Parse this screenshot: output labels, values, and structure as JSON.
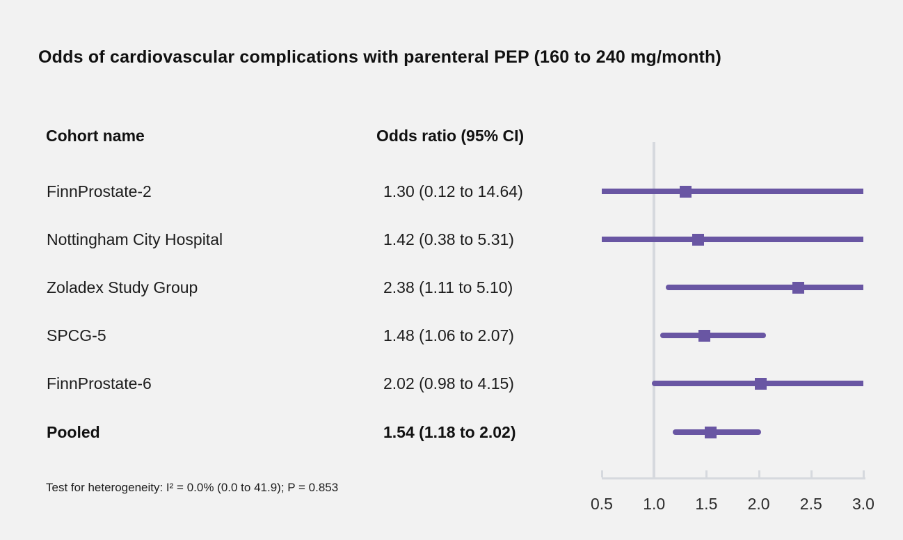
{
  "title": "Odds of cardiovascular complications with parenteral PEP (160 to 240 mg/month)",
  "columns": {
    "cohort": "Cohort name",
    "odds": "Odds ratio (95% CI)"
  },
  "footnote": "Test for heterogeneity: I² = 0.0% (0.0 to 41.9); P = 0.853",
  "colors": {
    "marker": "#6956a3",
    "axis": "#d6d9de",
    "background": "#f2f2f2",
    "text": "#1c1c1c"
  },
  "chart_data": {
    "type": "forest",
    "title": "Odds of cardiovascular complications with parenteral PEP (160 to 240 mg/month)",
    "xlabel": "",
    "x_axis": {
      "min": 0.5,
      "max": 3.0,
      "ticks": [
        "0.5",
        "1.0",
        "1.5",
        "2.0",
        "2.5",
        "3.0"
      ],
      "tick_values": [
        0.5,
        1.0,
        1.5,
        2.0,
        2.5,
        3.0
      ],
      "reference_line": 1.0
    },
    "rows": [
      {
        "label": "FinnProstate-2",
        "text": "1.30 (0.12 to 14.64)",
        "or": 1.3,
        "low": 0.12,
        "high": 14.64,
        "bold": false
      },
      {
        "label": "Nottingham City Hospital",
        "text": "1.42 (0.38 to 5.31)",
        "or": 1.42,
        "low": 0.38,
        "high": 5.31,
        "bold": false
      },
      {
        "label": "Zoladex Study Group",
        "text": "2.38 (1.11 to 5.10)",
        "or": 2.38,
        "low": 1.11,
        "high": 5.1,
        "bold": false
      },
      {
        "label": "SPCG-5",
        "text": "1.48 (1.06 to 2.07)",
        "or": 1.48,
        "low": 1.06,
        "high": 2.07,
        "bold": false
      },
      {
        "label": "FinnProstate-6",
        "text": "2.02 (0.98 to 4.15)",
        "or": 2.02,
        "low": 0.98,
        "high": 4.15,
        "bold": false
      },
      {
        "label": "Pooled",
        "text": "1.54 (1.18 to 2.02)",
        "or": 1.54,
        "low": 1.18,
        "high": 2.02,
        "bold": true
      }
    ],
    "footnote": "Test for heterogeneity: I² = 0.0% (0.0 to 41.9); P = 0.853"
  }
}
